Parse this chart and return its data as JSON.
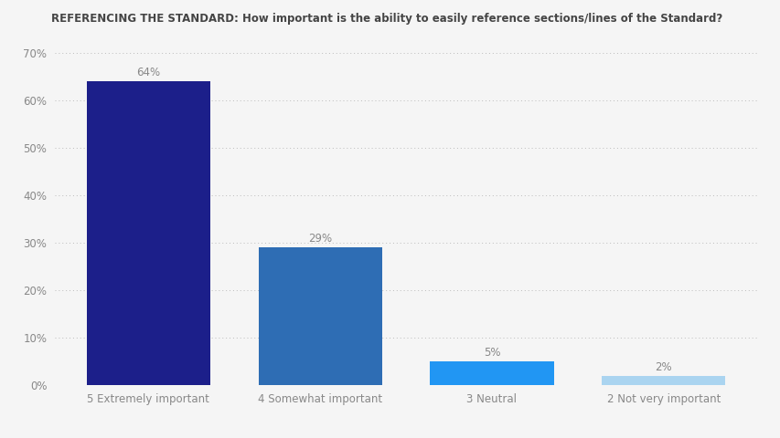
{
  "title": "REFERENCING THE STANDARD: How important is the ability to easily reference sections/lines of the Standard?",
  "categories": [
    "5 Extremely important",
    "4 Somewhat important",
    "3 Neutral",
    "2 Not very important"
  ],
  "values": [
    64,
    29,
    5,
    2
  ],
  "bar_colors": [
    "#1c1f8a",
    "#2e6db4",
    "#2196f3",
    "#aad4f0"
  ],
  "ylim": [
    0,
    70
  ],
  "yticks": [
    0,
    10,
    20,
    30,
    40,
    50,
    60,
    70
  ],
  "ytick_labels": [
    "0%",
    "10%",
    "20%",
    "30%",
    "40%",
    "50%",
    "60%",
    "70%"
  ],
  "title_fontsize": 8.5,
  "label_fontsize": 8.5,
  "value_fontsize": 8.5,
  "background_color": "#f5f5f5",
  "grid_color": "#bbbbbb",
  "text_color": "#888888",
  "title_color": "#444444"
}
